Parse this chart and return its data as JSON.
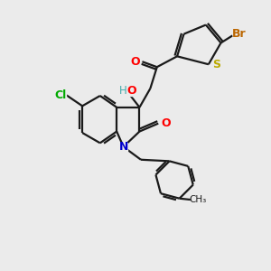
{
  "bg_color": "#ebebeb",
  "bond_color": "#1a1a1a",
  "colors": {
    "O": "#ff0000",
    "N": "#0000cc",
    "S": "#bbaa00",
    "Cl": "#00aa00",
    "Br": "#bb6600",
    "H": "#44aaaa",
    "C": "#1a1a1a"
  },
  "figsize": [
    3.0,
    3.0
  ],
  "dpi": 100
}
